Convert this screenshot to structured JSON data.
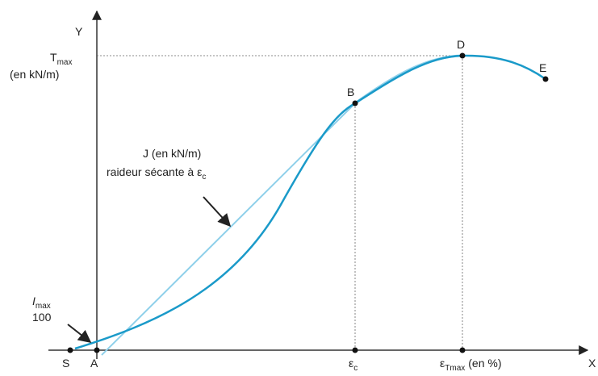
{
  "axes": {
    "y": "Y",
    "x": "X"
  },
  "y_label": {
    "symbol": "T",
    "sub": "max",
    "unit": "(en kN/m)"
  },
  "points": [
    {
      "label": "S"
    },
    {
      "label": "A"
    },
    {
      "label": "B"
    },
    {
      "label": "D"
    },
    {
      "label": "E"
    }
  ],
  "x_labels": [
    {
      "symbol": "ε",
      "sub": "c"
    },
    {
      "symbol": "ε",
      "sub": "Tmax",
      "unit": "(en %)"
    }
  ],
  "secant": {
    "line1": "J (en kN/m)",
    "line2": "raideur sécante à ε",
    "sub": "c"
  },
  "initial": {
    "symbol": "I",
    "sub": "max",
    "denominator": "100"
  }
}
